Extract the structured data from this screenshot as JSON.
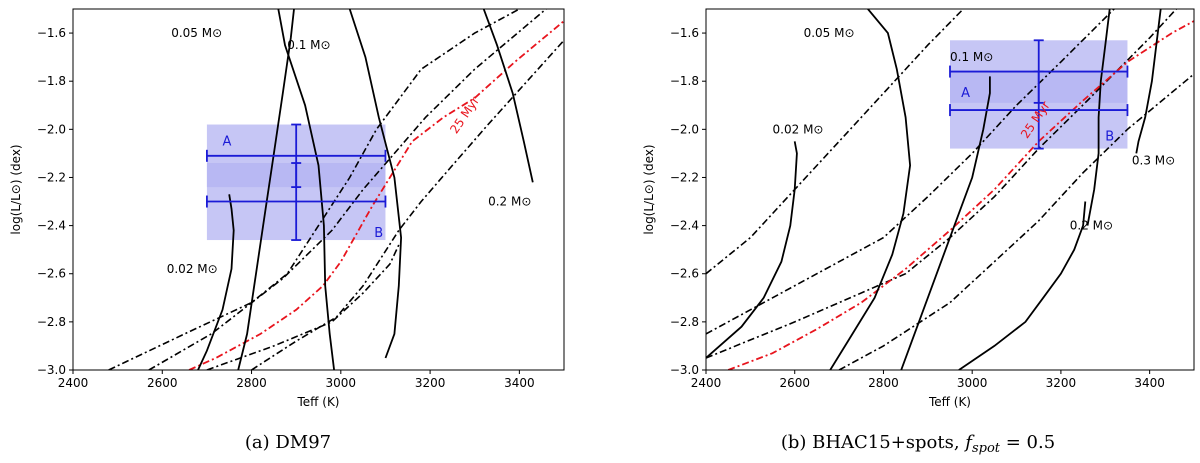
{
  "chart_data": [
    {
      "type": "line",
      "caption": "(a) DM97",
      "xlabel": "Teff (K)",
      "ylabel": "log(L/L⊙) (dex)",
      "xlim": [
        2400,
        3500
      ],
      "ylim": [
        -3.0,
        -1.5
      ],
      "xticks": [
        2400,
        2600,
        2800,
        3000,
        3200,
        3400
      ],
      "yticks": [
        -3.0,
        -2.8,
        -2.6,
        -2.4,
        -2.2,
        -2.0,
        -1.8,
        -1.6
      ],
      "xtick_labels": [
        "2400",
        "2600",
        "2800",
        "3000",
        "3200",
        "3400"
      ],
      "ytick_labels": [
        "−3.0",
        "−2.8",
        "−2.6",
        "−2.4",
        "−2.2",
        "−2.0",
        "−1.8",
        "−1.6"
      ],
      "mass_tracks": [
        {
          "label": "0.02 M⊙",
          "label_pos": [
            2610,
            -2.58
          ],
          "points": [
            [
              2680,
              -3.0
            ],
            [
              2700,
              -2.92
            ],
            [
              2735,
              -2.75
            ],
            [
              2755,
              -2.58
            ],
            [
              2760,
              -2.42
            ],
            [
              2755,
              -2.33
            ],
            [
              2750,
              -2.27
            ]
          ]
        },
        {
          "label": "0.05 M⊙",
          "label_pos": [
            2620,
            -1.6
          ],
          "points": [
            [
              2770,
              -3.0
            ],
            [
              2790,
              -2.85
            ],
            [
              2810,
              -2.6
            ],
            [
              2830,
              -2.35
            ],
            [
              2850,
              -2.1
            ],
            [
              2870,
              -1.85
            ],
            [
              2888,
              -1.62
            ],
            [
              2895,
              -1.5
            ]
          ]
        },
        {
          "label": "0.1 M⊙",
          "label_pos": [
            2880,
            -1.65
          ],
          "points": [
            [
              2860,
              -1.5
            ],
            [
              2875,
              -1.65
            ],
            [
              2920,
              -1.9
            ],
            [
              2950,
              -2.15
            ],
            [
              2962,
              -2.4
            ],
            [
              2965,
              -2.65
            ],
            [
              2975,
              -2.85
            ],
            [
              2985,
              -3.0
            ]
          ]
        },
        {
          "label": "0.2 M⊙",
          "label_pos": [
            3330,
            -2.3
          ],
          "points": [
            [
              3320,
              -1.5
            ],
            [
              3350,
              -1.65
            ],
            [
              3385,
              -1.85
            ],
            [
              3410,
              -2.05
            ],
            [
              3430,
              -2.22
            ]
          ]
        },
        {
          "label": "",
          "label_pos": [
            0,
            0
          ],
          "points": [
            [
              3020,
              -1.5
            ],
            [
              3055,
              -1.7
            ],
            [
              3085,
              -1.95
            ],
            [
              3120,
              -2.2
            ],
            [
              3135,
              -2.45
            ],
            [
              3130,
              -2.65
            ],
            [
              3120,
              -2.85
            ],
            [
              3100,
              -2.95
            ]
          ]
        }
      ],
      "isochrones_black": [
        {
          "points": [
            [
              2480,
              -3.0
            ],
            [
              2650,
              -2.85
            ],
            [
              2800,
              -2.72
            ],
            [
              2880,
              -2.6
            ],
            [
              2950,
              -2.4
            ],
            [
              3020,
              -2.2
            ],
            [
              3080,
              -2.0
            ],
            [
              3180,
              -1.75
            ],
            [
              3300,
              -1.6
            ],
            [
              3400,
              -1.5
            ]
          ]
        },
        {
          "points": [
            [
              2570,
              -3.0
            ],
            [
              2710,
              -2.85
            ],
            [
              2870,
              -2.62
            ],
            [
              2980,
              -2.42
            ],
            [
              3050,
              -2.25
            ],
            [
              3120,
              -2.1
            ],
            [
              3190,
              -1.95
            ],
            [
              3300,
              -1.75
            ],
            [
              3460,
              -1.5
            ]
          ]
        },
        {
          "points": [
            [
              2800,
              -3.0
            ],
            [
              2900,
              -2.88
            ],
            [
              2990,
              -2.78
            ],
            [
              3050,
              -2.65
            ],
            [
              3130,
              -2.42
            ],
            [
              3180,
              -2.3
            ],
            [
              3250,
              -2.15
            ],
            [
              3330,
              -1.98
            ],
            [
              3500,
              -1.63
            ]
          ]
        },
        {
          "points": [
            [
              2700,
              -3.0
            ],
            [
              2850,
              -2.9
            ],
            [
              2980,
              -2.8
            ],
            [
              3050,
              -2.68
            ],
            [
              3110,
              -2.56
            ],
            [
              3130,
              -2.48
            ]
          ]
        }
      ],
      "isochrone_red": {
        "label": "25 Myr",
        "label_pos": [
          3285,
          -1.95
        ],
        "points": [
          [
            2660,
            -3.0
          ],
          [
            2720,
            -2.95
          ],
          [
            2820,
            -2.85
          ],
          [
            2900,
            -2.75
          ],
          [
            2960,
            -2.65
          ],
          [
            3000,
            -2.55
          ],
          [
            3070,
            -2.32
          ],
          [
            3110,
            -2.2
          ],
          [
            3160,
            -2.05
          ],
          [
            3230,
            -1.95
          ],
          [
            3300,
            -1.87
          ],
          [
            3390,
            -1.72
          ],
          [
            3500,
            -1.55
          ]
        ]
      },
      "components": [
        {
          "label": "A",
          "teff": 2900,
          "teff_err": 200,
          "logL": -2.11,
          "logL_err": 0.13,
          "label_pos": [
            2745,
            -2.05
          ]
        },
        {
          "label": "B",
          "teff": 2900,
          "teff_err": 200,
          "logL": -2.3,
          "logL_err": 0.16,
          "label_pos": [
            3085,
            -2.43
          ]
        }
      ]
    },
    {
      "type": "line",
      "caption": "(b) BHAC15+spots, f_spot = 0.5",
      "caption_main": "(b) BHAC15+spots, ",
      "caption_f": "f",
      "caption_sub": "spot",
      "caption_tail": " = 0.5",
      "xlabel": "Teff (K)",
      "ylabel": "log(L/L⊙) (dex)",
      "xlim": [
        2400,
        3500
      ],
      "ylim": [
        -3.0,
        -1.5
      ],
      "xticks": [
        2400,
        2600,
        2800,
        3000,
        3200,
        3400
      ],
      "yticks": [
        -3.0,
        -2.8,
        -2.6,
        -2.4,
        -2.2,
        -2.0,
        -1.8,
        -1.6
      ],
      "xtick_labels": [
        "2400",
        "2600",
        "2800",
        "3000",
        "3200",
        "3400"
      ],
      "ytick_labels": [
        "−3.0",
        "−2.8",
        "−2.6",
        "−2.4",
        "−2.2",
        "−2.0",
        "−1.8",
        "−1.6"
      ],
      "mass_tracks": [
        {
          "label": "0.02 M⊙",
          "label_pos": [
            2550,
            -2.0
          ],
          "points": [
            [
              2400,
              -2.95
            ],
            [
              2480,
              -2.82
            ],
            [
              2530,
              -2.7
            ],
            [
              2570,
              -2.55
            ],
            [
              2590,
              -2.4
            ],
            [
              2600,
              -2.25
            ],
            [
              2605,
              -2.1
            ],
            [
              2600,
              -2.05
            ]
          ]
        },
        {
          "label": "0.05 M⊙",
          "label_pos": [
            2620,
            -1.6
          ],
          "points": [
            [
              2680,
              -3.0
            ],
            [
              2720,
              -2.88
            ],
            [
              2780,
              -2.7
            ],
            [
              2820,
              -2.52
            ],
            [
              2845,
              -2.35
            ],
            [
              2860,
              -2.15
            ],
            [
              2850,
              -1.95
            ],
            [
              2830,
              -1.75
            ],
            [
              2810,
              -1.6
            ],
            [
              2765,
              -1.5
            ]
          ]
        },
        {
          "label": "0.1 M⊙",
          "label_pos": [
            2950,
            -1.7
          ],
          "points": [
            [
              2840,
              -3.0
            ],
            [
              2870,
              -2.85
            ],
            [
              2920,
              -2.6
            ],
            [
              2960,
              -2.4
            ],
            [
              3000,
              -2.2
            ],
            [
              3025,
              -2.0
            ],
            [
              3040,
              -1.85
            ],
            [
              3040,
              -1.78
            ]
          ]
        },
        {
          "label": "0.2 M⊙",
          "label_pos": [
            3220,
            -2.4
          ],
          "points": [
            [
              2970,
              -3.0
            ],
            [
              3050,
              -2.9
            ],
            [
              3120,
              -2.8
            ],
            [
              3160,
              -2.7
            ],
            [
              3200,
              -2.6
            ],
            [
              3230,
              -2.5
            ],
            [
              3250,
              -2.4
            ],
            [
              3255,
              -2.3
            ]
          ]
        },
        {
          "label": "0.3 M⊙",
          "label_pos": [
            3360,
            -2.13
          ],
          "points": [
            [
              3425,
              -1.5
            ],
            [
              3415,
              -1.65
            ],
            [
              3405,
              -1.8
            ],
            [
              3390,
              -1.95
            ],
            [
              3375,
              -2.05
            ],
            [
              3370,
              -2.1
            ]
          ]
        },
        {
          "label": "",
          "label_pos": [
            0,
            0
          ],
          "points": [
            [
              3310,
              -1.5
            ],
            [
              3300,
              -1.65
            ],
            [
              3290,
              -1.8
            ],
            [
              3285,
              -1.95
            ],
            [
              3285,
              -2.1
            ],
            [
              3275,
              -2.25
            ],
            [
              3260,
              -2.4
            ]
          ]
        }
      ],
      "isochrones_black": [
        {
          "points": [
            [
              2400,
              -2.6
            ],
            [
              2500,
              -2.45
            ],
            [
              2600,
              -2.25
            ],
            [
              2700,
              -2.05
            ],
            [
              2800,
              -1.85
            ],
            [
              2900,
              -1.65
            ],
            [
              2980,
              -1.5
            ]
          ]
        },
        {
          "points": [
            [
              2400,
              -2.85
            ],
            [
              2550,
              -2.7
            ],
            [
              2650,
              -2.6
            ],
            [
              2800,
              -2.45
            ],
            [
              2900,
              -2.28
            ],
            [
              3000,
              -2.1
            ],
            [
              3100,
              -1.9
            ],
            [
              3200,
              -1.72
            ],
            [
              3320,
              -1.5
            ]
          ]
        },
        {
          "points": [
            [
              2400,
              -2.95
            ],
            [
              2600,
              -2.8
            ],
            [
              2700,
              -2.72
            ],
            [
              2850,
              -2.6
            ],
            [
              2950,
              -2.45
            ],
            [
              3050,
              -2.28
            ],
            [
              3150,
              -2.08
            ],
            [
              3260,
              -1.88
            ],
            [
              3400,
              -1.62
            ],
            [
              3460,
              -1.5
            ]
          ]
        },
        {
          "points": [
            [
              2700,
              -3.0
            ],
            [
              2800,
              -2.9
            ],
            [
              2950,
              -2.72
            ],
            [
              3050,
              -2.55
            ],
            [
              3150,
              -2.38
            ],
            [
              3250,
              -2.18
            ],
            [
              3350,
              -2.0
            ],
            [
              3500,
              -1.77
            ]
          ]
        }
      ],
      "isochrone_red": {
        "label": "25 Myr",
        "label_pos": [
          3150,
          -1.97
        ],
        "points": [
          [
            2450,
            -3.0
          ],
          [
            2550,
            -2.93
          ],
          [
            2650,
            -2.83
          ],
          [
            2750,
            -2.72
          ],
          [
            2850,
            -2.58
          ],
          [
            2950,
            -2.42
          ],
          [
            3050,
            -2.25
          ],
          [
            3150,
            -2.05
          ],
          [
            3250,
            -1.88
          ],
          [
            3350,
            -1.72
          ],
          [
            3450,
            -1.6
          ],
          [
            3500,
            -1.55
          ]
        ]
      },
      "components": [
        {
          "label": "A",
          "teff": 3150,
          "teff_err": 200,
          "logL": -1.76,
          "logL_err": 0.13,
          "label_pos": [
            2985,
            -1.85
          ]
        },
        {
          "label": "B",
          "teff": 3150,
          "teff_err": 200,
          "logL": -1.92,
          "logL_err": 0.16,
          "label_pos": [
            3310,
            -2.03
          ]
        }
      ]
    }
  ]
}
